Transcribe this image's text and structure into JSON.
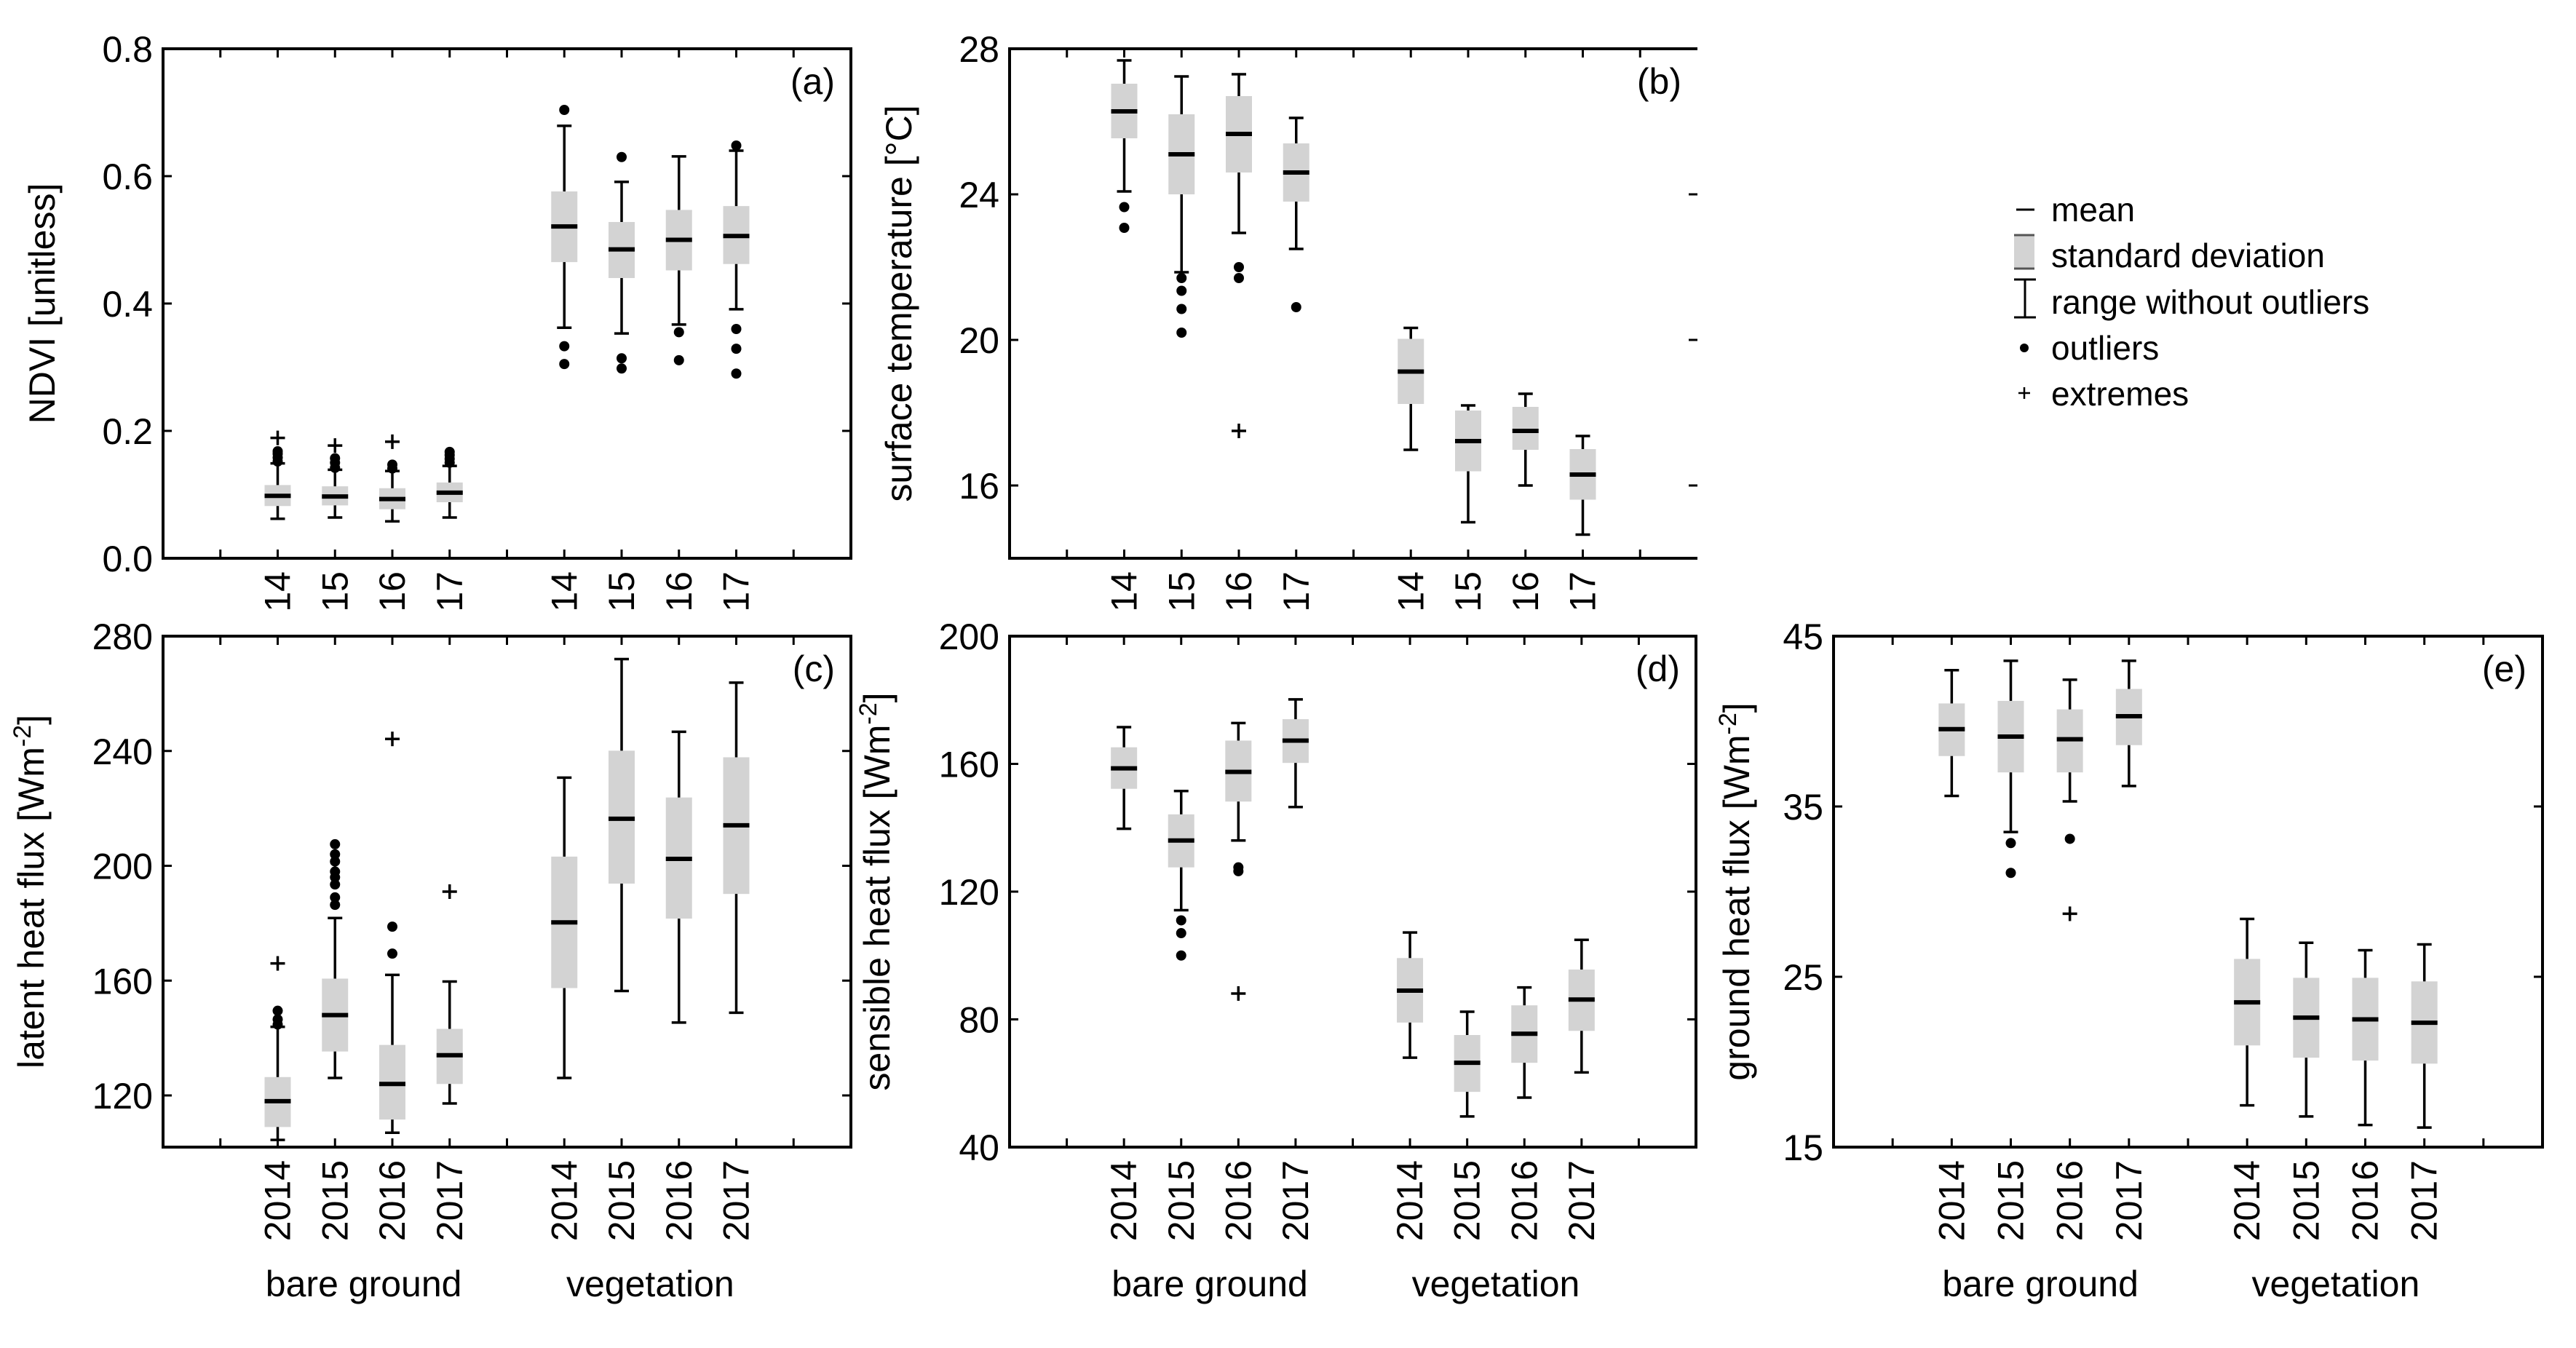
{
  "figure": {
    "legend": {
      "items": [
        {
          "symbol": "mean-dash",
          "label": "mean"
        },
        {
          "symbol": "grey-box",
          "label": "standard deviation"
        },
        {
          "symbol": "i-beam",
          "label": "range without outliers"
        },
        {
          "symbol": "dot",
          "label": "outliers"
        },
        {
          "symbol": "plus",
          "label": "extremes"
        }
      ],
      "colors": {
        "box_fill": "#d3d3d3",
        "line": "#000000"
      }
    },
    "group_labels": [
      "bare ground",
      "vegetation"
    ]
  },
  "chart_data": [
    {
      "id": "a",
      "type": "boxplot",
      "panel_tag": "(a)",
      "ylabel": "NDVI [unitless]",
      "ylabel_sup": "",
      "ylabel_suffix": "",
      "ylim": [
        0.0,
        0.8
      ],
      "yticks": [
        0.0,
        0.2,
        0.4,
        0.6,
        0.8
      ],
      "ytick_labels": [
        "0.0",
        "0.2",
        "0.4",
        "0.6",
        "0.8"
      ],
      "right_axis_line": true,
      "categories": [
        "14",
        "15",
        "16",
        "17",
        "14",
        "15",
        "16",
        "17"
      ],
      "show_group_labels": false,
      "groups": [
        {
          "name": "bare ground",
          "boxes": [
            {
              "year": "2014",
              "mean": 0.098,
              "sd_low": 0.082,
              "sd_high": 0.115,
              "whisker_low": 0.062,
              "whisker_high": 0.149,
              "outliers": [
                0.152,
                0.158,
                0.164,
                0.168
              ],
              "extremes": [
                0.189
              ]
            },
            {
              "year": "2015",
              "mean": 0.097,
              "sd_low": 0.083,
              "sd_high": 0.113,
              "whisker_low": 0.064,
              "whisker_high": 0.139,
              "outliers": [
                0.142,
                0.15,
                0.157
              ],
              "extremes": [
                0.177
              ]
            },
            {
              "year": "2016",
              "mean": 0.093,
              "sd_low": 0.077,
              "sd_high": 0.11,
              "whisker_low": 0.058,
              "whisker_high": 0.137,
              "outliers": [
                0.141,
                0.147
              ],
              "extremes": [
                0.183
              ]
            },
            {
              "year": "2017",
              "mean": 0.103,
              "sd_low": 0.088,
              "sd_high": 0.119,
              "whisker_low": 0.064,
              "whisker_high": 0.145,
              "outliers": [
                0.15,
                0.156,
                0.162,
                0.167
              ],
              "extremes": []
            }
          ]
        },
        {
          "name": "vegetation",
          "boxes": [
            {
              "year": "2014",
              "mean": 0.521,
              "sd_low": 0.465,
              "sd_high": 0.576,
              "whisker_low": 0.362,
              "whisker_high": 0.679,
              "outliers": [
                0.333,
                0.305,
                0.704
              ],
              "extremes": []
            },
            {
              "year": "2015",
              "mean": 0.485,
              "sd_low": 0.44,
              "sd_high": 0.528,
              "whisker_low": 0.353,
              "whisker_high": 0.591,
              "outliers": [
                0.314,
                0.298,
                0.63
              ],
              "extremes": []
            },
            {
              "year": "2016",
              "mean": 0.5,
              "sd_low": 0.452,
              "sd_high": 0.547,
              "whisker_low": 0.367,
              "whisker_high": 0.631,
              "outliers": [
                0.355,
                0.311
              ],
              "extremes": []
            },
            {
              "year": "2017",
              "mean": 0.506,
              "sd_low": 0.462,
              "sd_high": 0.553,
              "whisker_low": 0.391,
              "whisker_high": 0.64,
              "outliers": [
                0.36,
                0.329,
                0.29,
                0.648
              ],
              "extremes": []
            }
          ]
        }
      ]
    },
    {
      "id": "b",
      "type": "boxplot",
      "panel_tag": "(b)",
      "ylabel": "surface temperature [°C]",
      "ylabel_sup": "",
      "ylabel_suffix": "",
      "ylim": [
        14,
        28
      ],
      "yticks": [
        16,
        20,
        24,
        28
      ],
      "ytick_labels": [
        "16",
        "20",
        "24",
        "28"
      ],
      "right_axis_line": false,
      "categories": [
        "14",
        "15",
        "16",
        "17",
        "14",
        "15",
        "16",
        "17"
      ],
      "show_group_labels": false,
      "groups": [
        {
          "name": "bare ground",
          "boxes": [
            {
              "year": "2014",
              "mean": 26.28,
              "sd_low": 25.54,
              "sd_high": 27.04,
              "whisker_low": 24.08,
              "whisker_high": 27.68,
              "outliers": [
                23.65,
                23.08
              ],
              "extremes": []
            },
            {
              "year": "2015",
              "mean": 25.1,
              "sd_low": 24.0,
              "sd_high": 26.2,
              "whisker_low": 21.86,
              "whisker_high": 27.24,
              "outliers": [
                21.7,
                21.35,
                20.85,
                20.2
              ],
              "extremes": []
            },
            {
              "year": "2016",
              "mean": 25.66,
              "sd_low": 24.6,
              "sd_high": 26.7,
              "whisker_low": 22.94,
              "whisker_high": 27.3,
              "outliers": [
                22.0,
                21.7
              ],
              "extremes": [
                17.5
              ]
            },
            {
              "year": "2017",
              "mean": 24.6,
              "sd_low": 23.8,
              "sd_high": 25.4,
              "whisker_low": 22.5,
              "whisker_high": 26.1,
              "outliers": [
                20.9
              ],
              "extremes": []
            }
          ]
        },
        {
          "name": "vegetation",
          "boxes": [
            {
              "year": "2014",
              "mean": 19.13,
              "sd_low": 18.24,
              "sd_high": 20.03,
              "whisker_low": 16.98,
              "whisker_high": 20.33,
              "outliers": [],
              "extremes": []
            },
            {
              "year": "2015",
              "mean": 17.22,
              "sd_low": 16.39,
              "sd_high": 18.06,
              "whisker_low": 14.99,
              "whisker_high": 18.2,
              "outliers": [],
              "extremes": []
            },
            {
              "year": "2016",
              "mean": 17.5,
              "sd_low": 16.98,
              "sd_high": 18.16,
              "whisker_low": 16.0,
              "whisker_high": 18.52,
              "outliers": [],
              "extremes": []
            },
            {
              "year": "2017",
              "mean": 16.3,
              "sd_low": 15.61,
              "sd_high": 17.0,
              "whisker_low": 14.65,
              "whisker_high": 17.36,
              "outliers": [],
              "extremes": []
            }
          ]
        }
      ]
    },
    {
      "id": "c",
      "type": "boxplot",
      "panel_tag": "(c)",
      "ylabel": "latent heat flux [Wm",
      "ylabel_sup": "-2",
      "ylabel_suffix": "]",
      "ylim": [
        102,
        280
      ],
      "yticks": [
        120,
        160,
        200,
        240,
        280
      ],
      "ytick_labels": [
        "120",
        "160",
        "200",
        "240",
        "280"
      ],
      "right_axis_line": true,
      "categories": [
        "2014",
        "2015",
        "2016",
        "2017",
        "2014",
        "2015",
        "2016",
        "2017"
      ],
      "show_group_labels": true,
      "groups": [
        {
          "name": "bare ground",
          "boxes": [
            {
              "year": "2014",
              "mean": 118.0,
              "sd_low": 109.0,
              "sd_high": 126.4,
              "whisker_low": 104.5,
              "whisker_high": 143.9,
              "outliers": [
                144.7,
                146.5,
                149.5
              ],
              "extremes": [
                166.0
              ]
            },
            {
              "year": "2015",
              "mean": 148.0,
              "sd_low": 135.3,
              "sd_high": 160.7,
              "whisker_low": 126.1,
              "whisker_high": 181.8,
              "outliers": [
                186.4,
                189.0,
                193.5,
                196.0,
                198.0,
                201.5,
                204.0,
                207.5
              ],
              "extremes": []
            },
            {
              "year": "2016",
              "mean": 124.0,
              "sd_low": 111.6,
              "sd_high": 137.6,
              "whisker_low": 107.0,
              "whisker_high": 162.0,
              "outliers": [
                169.4,
                178.8
              ],
              "extremes": [
                244.2
              ]
            },
            {
              "year": "2017",
              "mean": 134.0,
              "sd_low": 124.0,
              "sd_high": 143.2,
              "whisker_low": 117.2,
              "whisker_high": 159.7,
              "outliers": [],
              "extremes": [
                191.0
              ]
            }
          ]
        },
        {
          "name": "vegetation",
          "boxes": [
            {
              "year": "2014",
              "mean": 180.3,
              "sd_low": 157.4,
              "sd_high": 203.2,
              "whisker_low": 126.1,
              "whisker_high": 230.7,
              "outliers": [],
              "extremes": []
            },
            {
              "year": "2015",
              "mean": 216.4,
              "sd_low": 193.8,
              "sd_high": 240.1,
              "whisker_low": 156.4,
              "whisker_high": 272.0,
              "outliers": [],
              "extremes": []
            },
            {
              "year": "2016",
              "mean": 202.4,
              "sd_low": 181.6,
              "sd_high": 223.8,
              "whisker_low": 145.4,
              "whisker_high": 246.7,
              "outliers": [],
              "extremes": []
            },
            {
              "year": "2017",
              "mean": 214.1,
              "sd_low": 190.2,
              "sd_high": 237.8,
              "whisker_low": 148.8,
              "whisker_high": 263.8,
              "outliers": [],
              "extremes": []
            }
          ]
        }
      ]
    },
    {
      "id": "d",
      "type": "boxplot",
      "panel_tag": "(d)",
      "ylabel": "sensible heat flux [Wm",
      "ylabel_sup": "-2",
      "ylabel_suffix": "]",
      "ylim": [
        40,
        200
      ],
      "yticks": [
        40,
        80,
        120,
        160,
        200
      ],
      "ytick_labels": [
        "40",
        "80",
        "120",
        "160",
        "200"
      ],
      "right_axis_line": true,
      "categories": [
        "2014",
        "2015",
        "2016",
        "2017",
        "2014",
        "2015",
        "2016",
        "2017"
      ],
      "show_group_labels": true,
      "groups": [
        {
          "name": "bare ground",
          "boxes": [
            {
              "year": "2014",
              "mean": 158.6,
              "sd_low": 152.2,
              "sd_high": 165.2,
              "whisker_low": 139.7,
              "whisker_high": 171.5,
              "outliers": [],
              "extremes": []
            },
            {
              "year": "2015",
              "mean": 136.0,
              "sd_low": 127.6,
              "sd_high": 144.2,
              "whisker_low": 114.2,
              "whisker_high": 151.5,
              "outliers": [
                111.0,
                107.0,
                100.0
              ],
              "extremes": []
            },
            {
              "year": "2016",
              "mean": 157.5,
              "sd_low": 148.2,
              "sd_high": 167.3,
              "whisker_low": 136.0,
              "whisker_high": 172.8,
              "outliers": [
                127.6,
                126.4
              ],
              "extremes": [
                88.1
              ]
            },
            {
              "year": "2017",
              "mean": 167.3,
              "sd_low": 160.3,
              "sd_high": 174.0,
              "whisker_low": 146.5,
              "whisker_high": 180.2,
              "outliers": [],
              "extremes": []
            }
          ]
        },
        {
          "name": "vegetation",
          "boxes": [
            {
              "year": "2014",
              "mean": 89.0,
              "sd_low": 79.0,
              "sd_high": 99.2,
              "whisker_low": 68.0,
              "whisker_high": 107.2,
              "outliers": [],
              "extremes": []
            },
            {
              "year": "2015",
              "mean": 66.4,
              "sd_low": 57.3,
              "sd_high": 75.1,
              "whisker_low": 49.6,
              "whisker_high": 82.4,
              "outliers": [],
              "extremes": []
            },
            {
              "year": "2016",
              "mean": 75.5,
              "sd_low": 66.4,
              "sd_high": 84.4,
              "whisker_low": 55.5,
              "whisker_high": 90.0,
              "outliers": [],
              "extremes": []
            },
            {
              "year": "2017",
              "mean": 86.2,
              "sd_low": 76.4,
              "sd_high": 95.6,
              "whisker_low": 63.4,
              "whisker_high": 104.9,
              "outliers": [],
              "extremes": []
            }
          ]
        }
      ]
    },
    {
      "id": "e",
      "type": "boxplot",
      "panel_tag": "(e)",
      "ylabel": "ground heat flux [Wm",
      "ylabel_sup": "-2",
      "ylabel_suffix": "]",
      "ylim": [
        15,
        45
      ],
      "yticks": [
        15,
        25,
        35,
        45
      ],
      "ytick_labels": [
        "15",
        "25",
        "35",
        "45"
      ],
      "right_axis_line": true,
      "categories": [
        "2014",
        "2015",
        "2016",
        "2017",
        "2014",
        "2015",
        "2016",
        "2017"
      ],
      "show_group_labels": true,
      "groups": [
        {
          "name": "bare ground",
          "boxes": [
            {
              "year": "2014",
              "mean": 39.54,
              "sd_low": 37.96,
              "sd_high": 41.05,
              "whisker_low": 35.62,
              "whisker_high": 43.0,
              "outliers": [],
              "extremes": []
            },
            {
              "year": "2015",
              "mean": 39.1,
              "sd_low": 37.0,
              "sd_high": 41.2,
              "whisker_low": 33.5,
              "whisker_high": 43.55,
              "outliers": [
                32.85,
                31.1
              ],
              "extremes": []
            },
            {
              "year": "2016",
              "mean": 38.95,
              "sd_low": 37.0,
              "sd_high": 40.7,
              "whisker_low": 35.3,
              "whisker_high": 42.44,
              "outliers": [
                33.1
              ],
              "extremes": [
                28.7
              ]
            },
            {
              "year": "2017",
              "mean": 40.3,
              "sd_low": 38.6,
              "sd_high": 41.9,
              "whisker_low": 36.2,
              "whisker_high": 43.55,
              "outliers": [],
              "extremes": []
            }
          ]
        },
        {
          "name": "vegetation",
          "boxes": [
            {
              "year": "2014",
              "mean": 23.5,
              "sd_low": 20.97,
              "sd_high": 26.05,
              "whisker_low": 17.45,
              "whisker_high": 28.4,
              "outliers": [],
              "extremes": []
            },
            {
              "year": "2015",
              "mean": 22.6,
              "sd_low": 20.25,
              "sd_high": 24.94,
              "whisker_low": 16.8,
              "whisker_high": 27.0,
              "outliers": [],
              "extremes": []
            },
            {
              "year": "2016",
              "mean": 22.5,
              "sd_low": 20.08,
              "sd_high": 24.94,
              "whisker_low": 16.3,
              "whisker_high": 26.56,
              "outliers": [],
              "extremes": []
            },
            {
              "year": "2017",
              "mean": 22.3,
              "sd_low": 19.9,
              "sd_high": 24.73,
              "whisker_low": 16.15,
              "whisker_high": 26.9,
              "outliers": [],
              "extremes": []
            }
          ]
        }
      ]
    }
  ]
}
